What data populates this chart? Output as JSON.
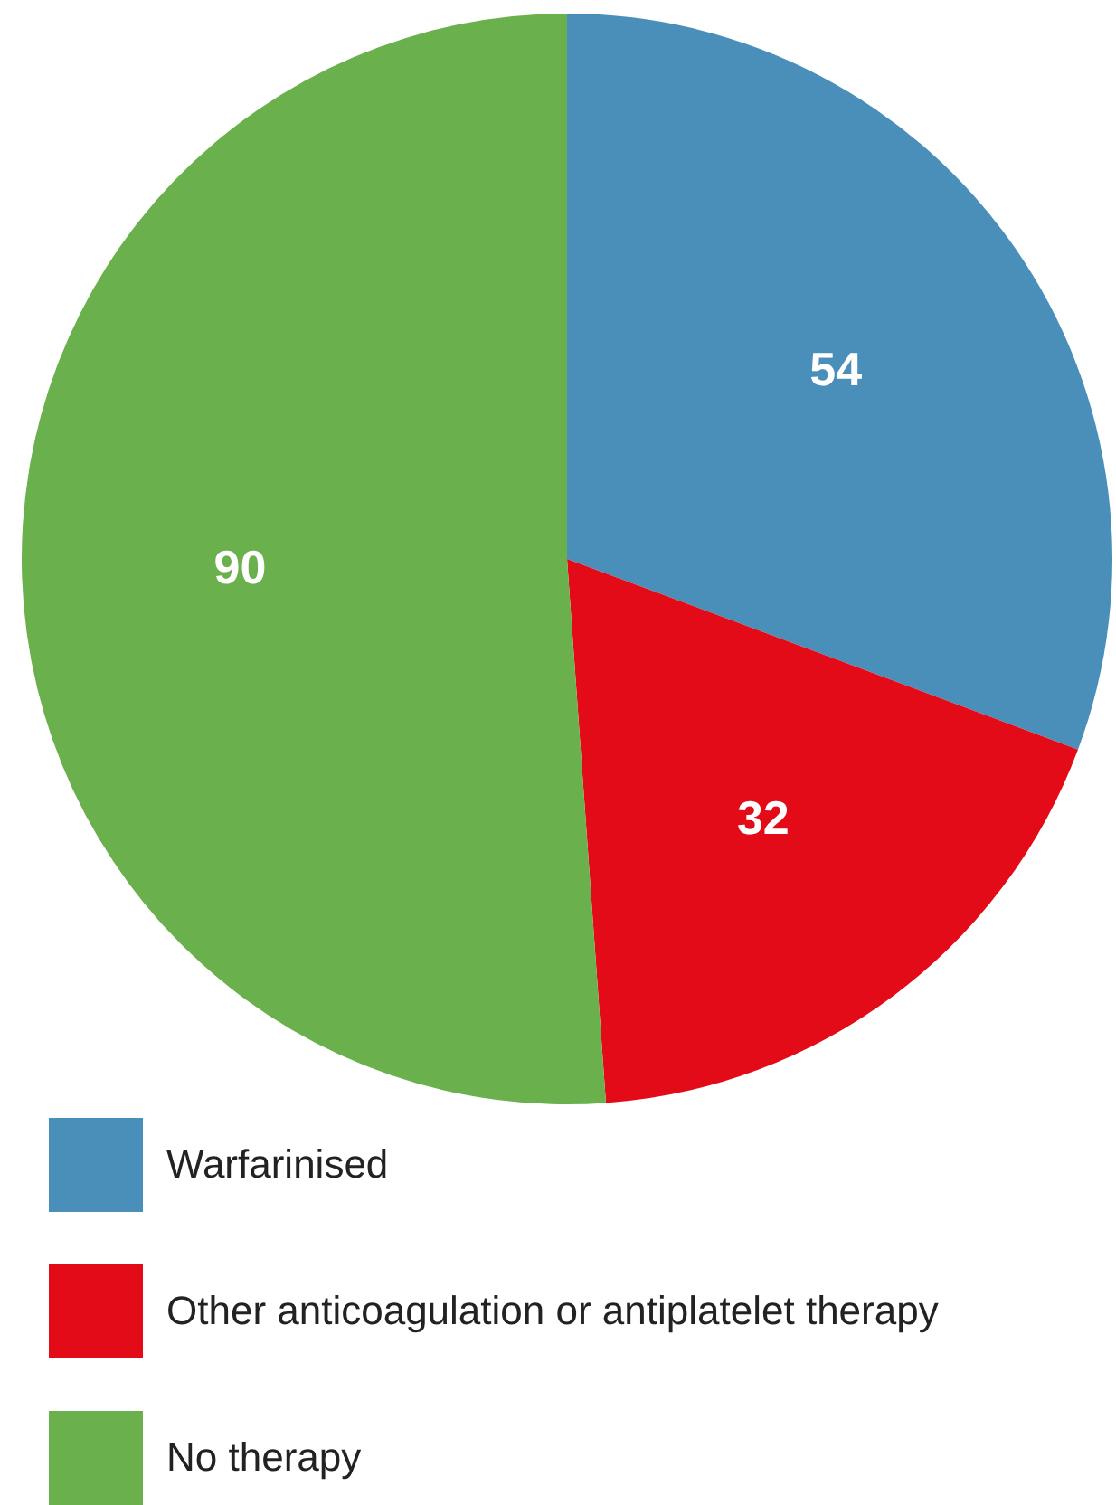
{
  "chart_data": {
    "type": "pie",
    "categories": [
      "Warfarinised",
      "Other anticoagulation or antiplatelet therapy",
      "No therapy"
    ],
    "values": [
      54,
      32,
      90
    ],
    "colors": [
      "#4a8fba",
      "#e30b17",
      "#6ab04c"
    ],
    "data_labels": true,
    "legend": "bottom"
  }
}
